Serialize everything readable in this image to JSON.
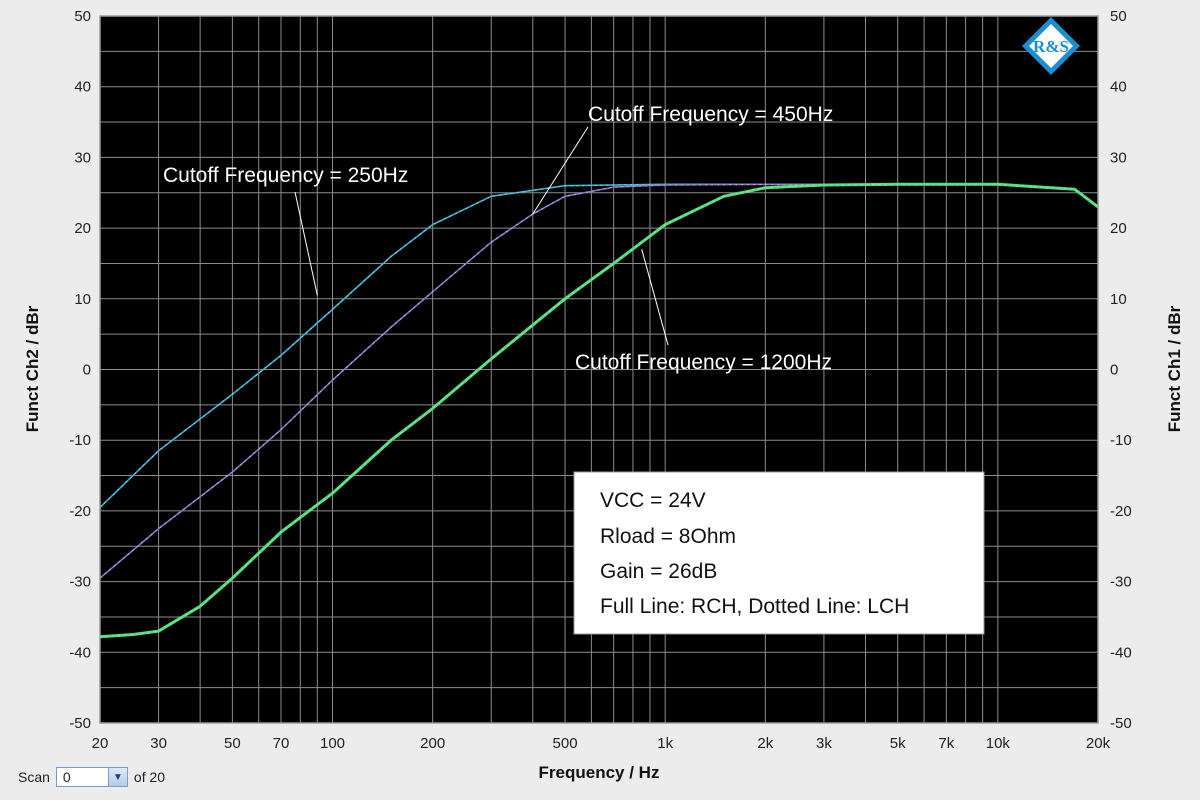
{
  "chart_data": {
    "type": "line",
    "x_scale": "log",
    "xlim": [
      20,
      20000
    ],
    "ylim": [
      -50,
      50
    ],
    "xlabel": "Frequency / Hz",
    "ylabel_left": "Funct Ch2 / dBr",
    "ylabel_right": "Funct Ch1 / dBr",
    "x_ticks": [
      20,
      30,
      50,
      70,
      100,
      200,
      500,
      1000,
      2000,
      3000,
      5000,
      7000,
      10000,
      20000
    ],
    "x_tick_labels": [
      "20",
      "30",
      "50",
      "70",
      "100",
      "200",
      "500",
      "1k",
      "2k",
      "3k",
      "5k",
      "7k",
      "10k",
      "20k"
    ],
    "y_ticks": [
      50,
      40,
      30,
      20,
      10,
      0,
      -10,
      -20,
      -30,
      -40,
      -50
    ],
    "y_tick_labels": [
      "50",
      "40",
      "30",
      "20",
      "10",
      "0",
      "-10",
      "-20",
      "-30",
      "-40",
      "-50"
    ],
    "grid": true,
    "background": "#000000",
    "series": [
      {
        "name": "Cutoff Frequency = 250Hz",
        "color": "#2fb8d8",
        "x": [
          20,
          30,
          50,
          70,
          100,
          150,
          200,
          300,
          500,
          1000,
          2000,
          5000,
          10000,
          17000,
          20000
        ],
        "y": [
          -19.5,
          -11.5,
          -3.5,
          2,
          8.5,
          16,
          20.5,
          24.5,
          26,
          26.2,
          26.2,
          26.2,
          26.2,
          25.5,
          23
        ]
      },
      {
        "name": "Cutoff Frequency = 450Hz",
        "color": "#8a72c8",
        "x": [
          20,
          30,
          50,
          70,
          100,
          150,
          200,
          300,
          400,
          500,
          700,
          1000,
          2000,
          5000,
          10000,
          17000,
          20000
        ],
        "y": [
          -29.5,
          -22.5,
          -14.5,
          -8.5,
          -1.5,
          6,
          11,
          18,
          22,
          24.5,
          25.8,
          26.1,
          26.2,
          26.2,
          26.2,
          25.5,
          23
        ]
      },
      {
        "name": "Cutoff Frequency = 1200Hz",
        "color": "#4de27a",
        "x": [
          20,
          25,
          30,
          40,
          50,
          70,
          100,
          150,
          200,
          300,
          500,
          700,
          1000,
          1500,
          2000,
          3000,
          5000,
          10000,
          17000,
          20000
        ],
        "y": [
          -37.8,
          -37.5,
          -37,
          -33.5,
          -29.5,
          -23,
          -17.5,
          -10,
          -5.5,
          1.5,
          10,
          15,
          20.5,
          24.5,
          25.7,
          26.1,
          26.2,
          26.2,
          25.5,
          23
        ]
      }
    ],
    "annotations": [
      {
        "text": "Cutoff Frequency = 250Hz",
        "target_x": 90,
        "target_y": 10.5
      },
      {
        "text": "Cutoff Frequency = 450Hz",
        "target_x": 400,
        "target_y": 22
      },
      {
        "text": "Cutoff Frequency = 1200Hz",
        "target_x": 850,
        "target_y": 17
      }
    ],
    "legend_box": {
      "lines": [
        "VCC = 24V",
        "Rload = 8Ohm",
        "Gain = 26dB",
        "Full Line: RCH, Dotted Line: LCH"
      ]
    }
  },
  "logo": {
    "text": "R&S"
  },
  "scan": {
    "label": "Scan",
    "value": "0",
    "of_text": "of 20"
  }
}
